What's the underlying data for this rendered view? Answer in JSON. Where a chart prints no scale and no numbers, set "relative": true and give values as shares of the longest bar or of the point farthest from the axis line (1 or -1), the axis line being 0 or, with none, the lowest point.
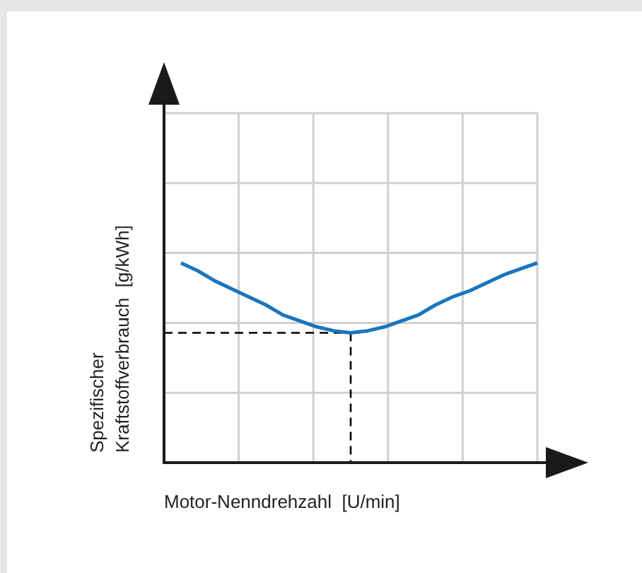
{
  "chart_data": {
    "type": "line",
    "relative": true,
    "xlabel": "Motor-Nenndrehzahl  [U/min]",
    "ylabel": "Spezifischer\nKraftstoffverbrauch  [g/kWh]",
    "categories": [
      null,
      null,
      null,
      null,
      null,
      null,
      null,
      null,
      null,
      null,
      null,
      null,
      null,
      null,
      null,
      null,
      null,
      null,
      null,
      null,
      null,
      null,
      null
    ],
    "series": [
      {
        "color": "#1a75bc",
        "values": [
          null,
          1,
          0.96,
          0.91,
          0.87,
          0.83,
          0.79,
          0.74,
          0.71,
          0.68,
          0.66,
          0.65,
          0.66,
          0.68,
          0.71,
          0.74,
          0.79,
          0.83,
          0.86,
          0.9,
          0.94,
          0.97,
          1
        ]
      }
    ],
    "ref_lines": [
      {
        "axis": "y",
        "value": 0.65,
        "color": "#000000",
        "line_style": "dashed"
      }
    ],
    "grid": true,
    "legend": false,
    "marker": "none",
    "line_style": "solid"
  }
}
